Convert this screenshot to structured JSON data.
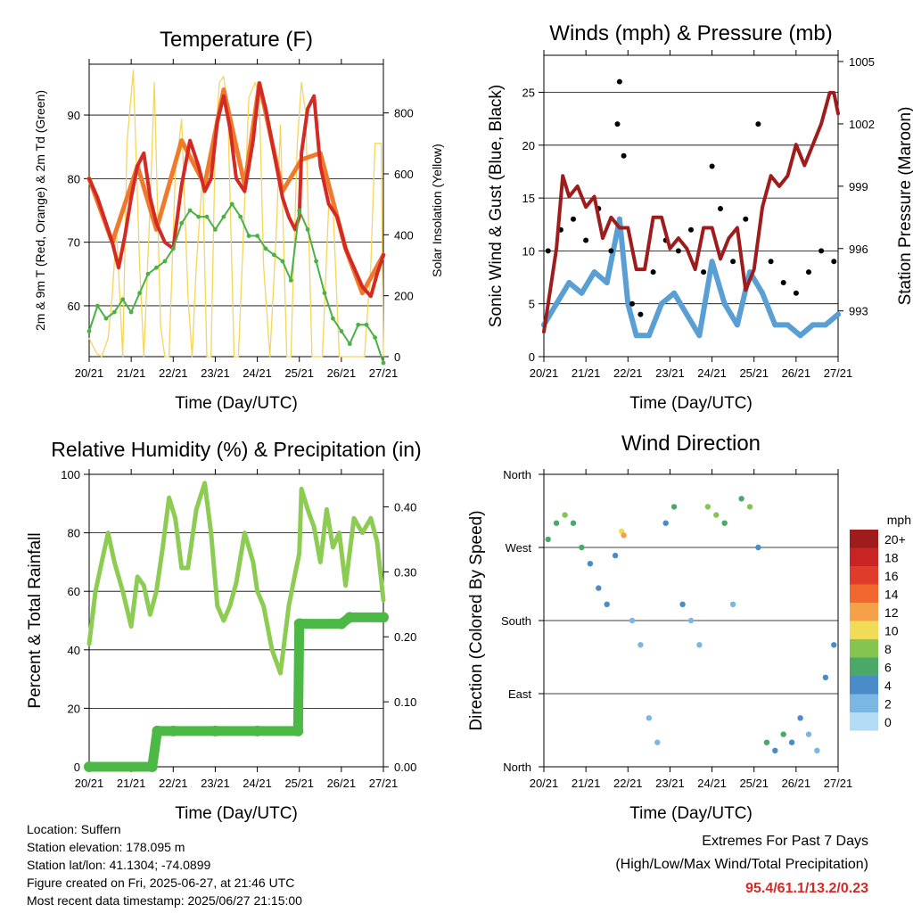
{
  "chart_data": [
    {
      "type": "line",
      "title": "Temperature (F)",
      "xlabel": "Time (Day/UTC)",
      "ylabel": "2m & 9m T (Red, Orange) & 2m Td (Green)",
      "ylabel_right": "Solar Insolation (Yellow)",
      "x_ticks": [
        "20/21",
        "21/21",
        "22/21",
        "23/21",
        "24/21",
        "25/21",
        "26/21",
        "27/21"
      ],
      "ylim": [
        52,
        98
      ],
      "y_ticks": [
        60,
        70,
        80,
        90
      ],
      "ylim_right": [
        0,
        960
      ],
      "y_ticks_right": [
        0,
        200,
        400,
        600,
        800
      ],
      "grid": true,
      "colors": {
        "t2m": "#d42a24",
        "t9m": "#f07a2c",
        "td2m": "#4cb044",
        "solar": "#f5d55a"
      },
      "series": [
        {
          "name": "2m T",
          "x": [
            0,
            0.2,
            0.4,
            0.55,
            0.7,
            0.85,
            1.0,
            1.15,
            1.3,
            1.45,
            1.6,
            1.8,
            2.0,
            2.1,
            2.2,
            2.4,
            2.6,
            2.75,
            2.9,
            3.05,
            3.2,
            3.35,
            3.5,
            3.7,
            3.9,
            4.05,
            4.2,
            4.4,
            4.6,
            4.75,
            4.9,
            5.0,
            5.05,
            5.2,
            5.35,
            5.5,
            5.7,
            5.9,
            6.1,
            6.3,
            6.5,
            6.7,
            6.85,
            7.0
          ],
          "values": [
            80,
            77,
            73,
            70,
            66,
            71,
            77,
            82,
            84,
            77,
            73,
            70,
            69,
            74,
            79,
            86,
            82,
            78,
            80,
            89,
            93,
            88,
            80,
            78,
            86,
            95,
            91,
            84,
            77,
            74,
            72,
            74,
            84,
            91,
            93,
            82,
            76,
            74,
            69,
            66,
            63,
            61.5,
            65,
            68
          ]
        },
        {
          "name": "9m T",
          "x": [
            0,
            0.55,
            1.15,
            1.6,
            2.2,
            2.75,
            3.2,
            3.7,
            4.05,
            4.6,
            5.05,
            5.5,
            6.1,
            6.5,
            7.0
          ],
          "values": [
            80,
            70,
            82,
            72,
            86,
            79,
            94,
            79,
            95,
            78,
            83,
            84,
            69,
            62,
            68
          ]
        },
        {
          "name": "2m Td",
          "x": [
            0,
            0.2,
            0.4,
            0.6,
            0.8,
            1.0,
            1.2,
            1.4,
            1.6,
            1.8,
            2.0,
            2.2,
            2.4,
            2.6,
            2.8,
            3.0,
            3.2,
            3.4,
            3.6,
            3.8,
            4.0,
            4.2,
            4.4,
            4.6,
            4.8,
            5.0,
            5.2,
            5.4,
            5.6,
            5.8,
            6.0,
            6.2,
            6.4,
            6.6,
            6.8,
            7.0
          ],
          "values": [
            56,
            60,
            58,
            59,
            61,
            59,
            62,
            65,
            66,
            67,
            69,
            73,
            75,
            74,
            74,
            72,
            74,
            76,
            74,
            71,
            71,
            69,
            68,
            67,
            64,
            75,
            72,
            67,
            62,
            58,
            56,
            54,
            57,
            57,
            55,
            51
          ]
        },
        {
          "name": "Solar Insolation",
          "x": [
            0,
            0.18,
            0.3,
            0.45,
            0.55,
            0.65,
            0.8,
            0.9,
            1.05,
            1.2,
            1.3,
            1.45,
            1.55,
            1.7,
            1.8,
            1.9,
            2.05,
            2.2,
            2.35,
            2.45,
            2.55,
            2.7,
            2.8,
            2.9,
            3.0,
            3.1,
            3.2,
            3.3,
            3.45,
            3.55,
            3.7,
            3.8,
            3.95,
            4.05,
            4.15,
            4.3,
            4.45,
            4.55,
            4.7,
            4.8,
            4.95,
            5.05,
            5.15,
            5.3,
            5.45,
            5.55,
            5.7,
            5.8,
            5.95,
            6.05,
            6.2,
            6.3,
            6.45,
            6.55,
            6.7,
            6.8,
            6.95,
            7.0
          ],
          "values": [
            60,
            10,
            0,
            60,
            200,
            420,
            0,
            700,
            940,
            300,
            0,
            500,
            900,
            100,
            0,
            0,
            600,
            780,
            200,
            0,
            300,
            600,
            0,
            0,
            700,
            900,
            920,
            800,
            0,
            0,
            500,
            850,
            900,
            850,
            300,
            0,
            400,
            760,
            0,
            0,
            700,
            900,
            800,
            0,
            0,
            0,
            500,
            500,
            0,
            0,
            0,
            0,
            0,
            0,
            300,
            700,
            700,
            0
          ]
        }
      ]
    },
    {
      "type": "scatter",
      "title": "Winds (mph) & Pressure (mb)",
      "xlabel": "Time (Day/UTC)",
      "ylabel": "Sonic Wind & Gust (Blue, Black)",
      "ylabel_right": "Station Pressure (Maroon)",
      "x_ticks": [
        "20/21",
        "21/21",
        "22/21",
        "23/21",
        "24/21",
        "25/21",
        "26/21",
        "27/21"
      ],
      "ylim": [
        0,
        28.5
      ],
      "y_ticks": [
        0,
        5,
        10,
        15,
        20,
        25
      ],
      "ylim_right": [
        990.8,
        1005.3
      ],
      "y_ticks_right": [
        993,
        996,
        999,
        1002,
        1005
      ],
      "grid": true,
      "colors": {
        "wind": "#5a9fd4",
        "gust": "#000000",
        "pressure": "#9e1c1c"
      },
      "series": [
        {
          "name": "Sonic Wind",
          "x": [
            0,
            0.3,
            0.6,
            0.9,
            1.2,
            1.5,
            1.8,
            2.0,
            2.2,
            2.5,
            2.8,
            3.1,
            3.4,
            3.7,
            4.0,
            4.3,
            4.6,
            4.9,
            5.2,
            5.5,
            5.8,
            6.1,
            6.4,
            6.7,
            7.0
          ],
          "values": [
            3,
            5,
            7,
            6,
            8,
            7,
            13,
            5,
            2,
            2,
            5,
            6,
            4,
            2,
            9,
            5,
            3,
            8,
            6,
            3,
            3,
            2,
            3,
            3,
            4
          ]
        },
        {
          "name": "Gust",
          "x": [
            0.1,
            0.4,
            0.7,
            1.0,
            1.3,
            1.6,
            1.75,
            1.8,
            1.9,
            2.1,
            2.3,
            2.6,
            2.9,
            3.2,
            3.5,
            3.8,
            4.0,
            4.2,
            4.5,
            4.8,
            5.1,
            5.4,
            5.7,
            6.0,
            6.3,
            6.6,
            6.9
          ],
          "values": [
            10,
            12,
            13,
            11,
            14,
            10,
            22,
            26,
            19,
            5,
            4,
            8,
            11,
            10,
            12,
            8,
            18,
            14,
            9,
            13,
            22,
            9,
            7,
            6,
            8,
            10,
            9
          ]
        },
        {
          "name": "Station Pressure",
          "x": [
            0,
            0.15,
            0.3,
            0.45,
            0.6,
            0.8,
            1.0,
            1.2,
            1.4,
            1.6,
            1.8,
            2.0,
            2.2,
            2.4,
            2.6,
            2.8,
            3.0,
            3.2,
            3.4,
            3.6,
            3.8,
            4.0,
            4.2,
            4.4,
            4.6,
            4.8,
            5.0,
            5.2,
            5.4,
            5.6,
            5.8,
            6.0,
            6.2,
            6.4,
            6.6,
            6.8,
            6.9,
            7.0
          ],
          "values": [
            992,
            994,
            996,
            999.5,
            998.5,
            999,
            998,
            998.5,
            996.5,
            997.5,
            997,
            997,
            995,
            995,
            997.5,
            997.5,
            996,
            996.5,
            996,
            995,
            997,
            997,
            995.5,
            996.5,
            997,
            994,
            995,
            998,
            999.5,
            999,
            999.5,
            1001,
            1000,
            1001,
            1002,
            1003.5,
            1003.5,
            1002.5
          ]
        }
      ]
    },
    {
      "type": "line",
      "title": "Relative Humidity (%) & Precipitation (in)",
      "xlabel": "Time (Day/UTC)",
      "ylabel": "Percent & Total Rainfall",
      "x_ticks": [
        "20/21",
        "21/21",
        "22/21",
        "23/21",
        "24/21",
        "25/21",
        "26/21",
        "27/21"
      ],
      "ylim": [
        0,
        100
      ],
      "y_ticks": [
        0,
        20,
        40,
        60,
        80,
        100
      ],
      "ylim_right": [
        0,
        0.45
      ],
      "y_ticks_right": [
        "0.00",
        "0.10",
        "0.20",
        "0.30",
        "0.40"
      ],
      "grid": true,
      "colors": {
        "rh": "#8ccc52",
        "precip": "#4cb846"
      },
      "series": [
        {
          "name": "Relative Humidity",
          "x": [
            0,
            0.15,
            0.3,
            0.45,
            0.6,
            0.8,
            1.0,
            1.15,
            1.3,
            1.45,
            1.6,
            1.75,
            1.9,
            2.05,
            2.2,
            2.35,
            2.55,
            2.75,
            2.9,
            3.05,
            3.2,
            3.35,
            3.5,
            3.7,
            3.9,
            4.0,
            4.15,
            4.35,
            4.55,
            4.75,
            4.9,
            5.0,
            5.05,
            5.2,
            5.35,
            5.5,
            5.65,
            5.8,
            5.95,
            6.1,
            6.3,
            6.5,
            6.7,
            6.85,
            7.0
          ],
          "values": [
            42,
            60,
            70,
            80,
            70,
            60,
            48,
            65,
            62,
            52,
            60,
            75,
            92,
            85,
            68,
            68,
            88,
            97,
            80,
            55,
            50,
            55,
            63,
            80,
            70,
            60,
            55,
            40,
            32,
            55,
            66,
            73,
            95,
            88,
            82,
            70,
            88,
            75,
            80,
            62,
            85,
            80,
            85,
            77,
            57
          ]
        },
        {
          "name": "Total Precipitation",
          "x": [
            0,
            1.5,
            1.62,
            2.0,
            3.0,
            4.0,
            4.97,
            5.0,
            5.03,
            6.0,
            6.2,
            7.0
          ],
          "values": [
            0.0,
            0.0,
            0.055,
            0.055,
            0.055,
            0.055,
            0.055,
            0.22,
            0.22,
            0.22,
            0.23,
            0.23
          ]
        }
      ]
    },
    {
      "type": "scatter",
      "title": "Wind Direction",
      "xlabel": "Time (Day/UTC)",
      "ylabel": "Direction (Colored By Speed)",
      "x_ticks": [
        "20/21",
        "21/21",
        "22/21",
        "23/21",
        "24/21",
        "25/21",
        "26/21",
        "27/21"
      ],
      "y_ticks": [
        "North",
        "East",
        "South",
        "West",
        "North"
      ],
      "ylim": [
        0,
        360
      ],
      "grid": true,
      "legend": {
        "title": "mph",
        "labels": [
          "20+",
          "18",
          "16",
          "14",
          "12",
          "10",
          "8",
          "6",
          "4",
          "2",
          "0"
        ],
        "colors": [
          "#9e1c1c",
          "#c82424",
          "#e03c2c",
          "#f0682e",
          "#f6a04a",
          "#f0dc56",
          "#84c450",
          "#4ca868",
          "#4a8cc8",
          "#7cb6e2",
          "#b4dcf4"
        ]
      },
      "series": [
        {
          "name": "Direction",
          "x": [
            0.1,
            0.3,
            0.5,
            0.7,
            0.9,
            1.1,
            1.3,
            1.5,
            1.7,
            1.85,
            1.9,
            2.1,
            2.3,
            2.5,
            2.7,
            2.9,
            3.1,
            3.3,
            3.5,
            3.7,
            3.9,
            4.1,
            4.3,
            4.5,
            4.7,
            4.9,
            5.1,
            5.3,
            5.5,
            5.7,
            5.9,
            6.1,
            6.3,
            6.5,
            6.7,
            6.9
          ],
          "values": [
            280,
            300,
            310,
            300,
            270,
            250,
            220,
            200,
            260,
            290,
            285,
            180,
            150,
            60,
            30,
            300,
            320,
            200,
            180,
            150,
            320,
            310,
            300,
            200,
            330,
            320,
            270,
            30,
            20,
            40,
            30,
            60,
            40,
            20,
            110,
            150
          ],
          "speed": [
            6,
            5,
            8,
            6,
            5,
            4,
            4,
            3,
            4,
            10,
            12,
            2,
            1,
            1,
            2,
            4,
            6,
            3,
            2,
            2,
            8,
            7,
            6,
            2,
            6,
            7,
            4,
            6,
            4,
            5,
            3,
            3,
            2,
            2,
            3,
            4
          ]
        }
      ]
    }
  ],
  "info": {
    "location": "Location: Suffern",
    "elevation": "Station elevation: 178.095 m",
    "latlon": "Station lat/lon: 41.1304; -74.0899",
    "created": "Figure created on Fri, 2025-06-27, at 21:46 UTC",
    "recent": "Most recent data timestamp: 2025/06/27 21:15:00"
  },
  "extremes": {
    "line1": "Extremes For Past 7 Days",
    "line2": "(High/Low/Max Wind/Total Precipitation)",
    "values": "95.4/61.1/13.2/0.23",
    "color": "#d42a24"
  }
}
